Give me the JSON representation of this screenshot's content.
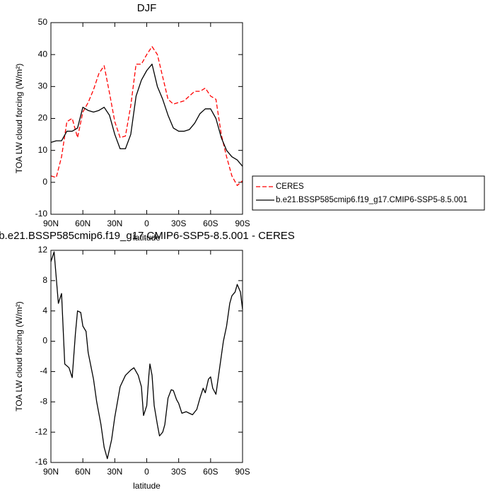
{
  "chart_data": [
    {
      "type": "line",
      "title": "DJF",
      "x_label": "latitude",
      "y_label": "TOA LW cloud forcing (W/m²)",
      "x": [
        90,
        85,
        80,
        75,
        70,
        65,
        60,
        55,
        50,
        45,
        40,
        35,
        30,
        25,
        20,
        15,
        10,
        5,
        0,
        -5,
        -10,
        -15,
        -20,
        -25,
        -30,
        -35,
        -40,
        -45,
        -50,
        -55,
        -60,
        -65,
        -70,
        -75,
        -80,
        -85,
        -90
      ],
      "series": [
        {
          "name": "CERES",
          "color": "#ff0000",
          "line_style": "dashed",
          "values": [
            2,
            1.5,
            8,
            19,
            20,
            14,
            22,
            25,
            29,
            34,
            36.5,
            28,
            19,
            14,
            14.5,
            24,
            37,
            37,
            40,
            42.5,
            40,
            33,
            26,
            24.5,
            25,
            25.5,
            27,
            28.5,
            28.5,
            29.5,
            27,
            26,
            15,
            8,
            2,
            -1,
            0.5
          ]
        },
        {
          "name": "b.e21.BSSP585cmip6.f19_g17.CMIP6-SSP5-8.5.001",
          "color": "#000000",
          "line_style": "solid",
          "values": [
            12.5,
            13,
            13,
            16,
            16,
            17,
            23.5,
            22.5,
            22,
            22.5,
            23.5,
            21,
            15,
            10.5,
            10.5,
            15,
            27,
            32,
            35,
            37,
            30,
            26,
            21,
            17,
            16,
            16,
            16.5,
            18.5,
            21.5,
            23,
            23,
            20,
            14,
            10,
            8,
            7,
            5
          ]
        }
      ],
      "xlim": [
        90,
        -90
      ],
      "xticks": [
        {
          "value": 90,
          "label": "90N"
        },
        {
          "value": 60,
          "label": "60N"
        },
        {
          "value": 30,
          "label": "30N"
        },
        0,
        {
          "value": -30,
          "label": "30S"
        },
        {
          "value": -60,
          "label": "60S"
        },
        {
          "value": -90,
          "label": "90S"
        }
      ],
      "ylim": [
        -10,
        50
      ],
      "yticks": [
        -10,
        0,
        10,
        20,
        30,
        40,
        50
      ],
      "legend": "right"
    },
    {
      "type": "line",
      "title": "b.e21.BSSP585cmip6.f19_g17.CMIP6-SSP5-8.5.001 - CERES",
      "x_label": "latitude",
      "y_label": "TOA LW cloud forcing (W/m²)",
      "x": [
        90,
        87,
        83,
        80,
        77,
        73,
        70,
        67,
        65,
        62,
        60,
        57,
        55,
        50,
        47,
        43,
        40,
        37,
        33,
        30,
        25,
        20,
        15,
        12,
        8,
        5,
        3,
        0,
        -2,
        -3,
        -5,
        -7,
        -10,
        -12,
        -15,
        -17,
        -20,
        -23,
        -25,
        -28,
        -30,
        -33,
        -37,
        -40,
        -43,
        -47,
        -50,
        -53,
        -55,
        -58,
        -60,
        -62,
        -65,
        -68,
        -72,
        -75,
        -78,
        -80,
        -83,
        -85,
        -88,
        -90
      ],
      "values": [
        10.5,
        11.8,
        5,
        6.3,
        -3,
        -3.5,
        -4.8,
        1,
        4,
        3.8,
        2,
        1.3,
        -1.5,
        -5,
        -8,
        -11,
        -14,
        -15.5,
        -13,
        -10,
        -6,
        -4.5,
        -3.8,
        -3.5,
        -4.5,
        -6,
        -9.8,
        -8.5,
        -4.5,
        -3,
        -4.5,
        -8.5,
        -11,
        -12.5,
        -12,
        -11,
        -7.5,
        -6.4,
        -6.5,
        -7.7,
        -8.2,
        -9.5,
        -9.3,
        -9.5,
        -9.7,
        -9,
        -7.5,
        -6.2,
        -6.8,
        -5,
        -4.7,
        -6.2,
        -7,
        -4,
        0,
        2,
        5,
        6,
        6.5,
        7.5,
        6.5,
        4.2
      ],
      "color": "#000000",
      "xlim": [
        90,
        -90
      ],
      "xticks": [
        {
          "value": 90,
          "label": "90N"
        },
        {
          "value": 60,
          "label": "60N"
        },
        {
          "value": 30,
          "label": "30N"
        },
        0,
        {
          "value": -30,
          "label": "30S"
        },
        {
          "value": -60,
          "label": "60S"
        },
        {
          "value": -90,
          "label": "90S"
        }
      ],
      "ylim": [
        -16,
        12
      ],
      "yticks": [
        -16,
        -12,
        -8,
        -4,
        0,
        4,
        8,
        12
      ]
    }
  ]
}
